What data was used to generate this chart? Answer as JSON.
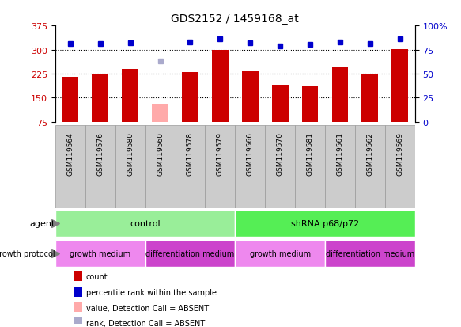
{
  "title": "GDS2152 / 1459168_at",
  "samples": [
    "GSM119564",
    "GSM119576",
    "GSM119580",
    "GSM119560",
    "GSM119578",
    "GSM119579",
    "GSM119566",
    "GSM119570",
    "GSM119581",
    "GSM119561",
    "GSM119562",
    "GSM119569"
  ],
  "count_values": [
    215,
    225,
    240,
    null,
    230,
    298,
    232,
    190,
    186,
    248,
    222,
    302
  ],
  "count_absent": [
    null,
    null,
    null,
    130,
    null,
    null,
    null,
    null,
    null,
    null,
    null,
    null
  ],
  "percentile_values": [
    81,
    81,
    82,
    null,
    83,
    86,
    82,
    79,
    80,
    83,
    81,
    86
  ],
  "percentile_absent": [
    null,
    null,
    null,
    63,
    null,
    null,
    null,
    null,
    null,
    null,
    null,
    null
  ],
  "ylim_left": [
    75,
    375
  ],
  "ylim_right": [
    0,
    100
  ],
  "yticks_left": [
    75,
    150,
    225,
    300,
    375
  ],
  "yticks_right": [
    0,
    25,
    50,
    75,
    100
  ],
  "bar_color": "#cc0000",
  "bar_absent_color": "#ffaaaa",
  "dot_color": "#0000cc",
  "dot_absent_color": "#aaaacc",
  "agent_control_color": "#99ee99",
  "agent_shRNA_color": "#55ee55",
  "growth_medium_color": "#ee88ee",
  "diff_medium_color": "#cc44cc",
  "agent_control_label": "control",
  "agent_shRNA_label": "shRNA p68/p72",
  "growth_medium_label": "growth medium",
  "diff_medium_label": "differentiation medium",
  "sample_box_color": "#cccccc",
  "sample_box_edge": "#999999",
  "bar_width": 0.55,
  "hline_vals": [
    150,
    225,
    300
  ],
  "control_count": 6,
  "growth_sections": [
    [
      0,
      3,
      "growth medium",
      "#ee88ee"
    ],
    [
      3,
      6,
      "differentiation medium",
      "#cc44cc"
    ],
    [
      6,
      9,
      "growth medium",
      "#ee88ee"
    ],
    [
      9,
      12,
      "differentiation medium",
      "#cc44cc"
    ]
  ]
}
